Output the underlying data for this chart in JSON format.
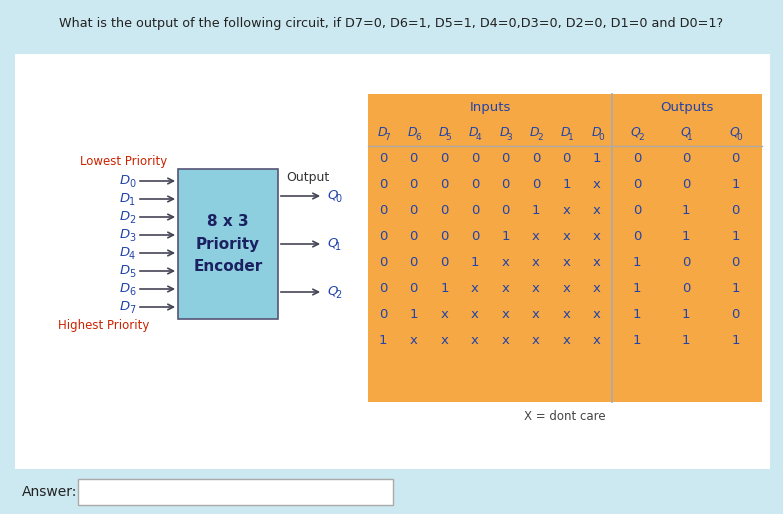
{
  "title": "What is the output of the following circuit, if D7=0, D6=1, D5=1, D4=0,D3=0, D2=0, D1=0 and D0=1?",
  "bg_outer": "#cce8f0",
  "bg_inner": "#ffffff",
  "table_bg": "#f5a843",
  "table_header_text": "#2244aa",
  "table_data_text": "#2244aa",
  "box_fill": "#8ecfdf",
  "box_edge": "#555577",
  "box_text": "#1a2060",
  "arrow_color": "#444455",
  "label_color": "#2244aa",
  "priority_color": "#cc2200",
  "inputs_header": "Inputs",
  "outputs_header": "Outputs",
  "table_rows": [
    [
      "0",
      "0",
      "0",
      "0",
      "0",
      "0",
      "0",
      "1",
      "0",
      "0",
      "0"
    ],
    [
      "0",
      "0",
      "0",
      "0",
      "0",
      "0",
      "1",
      "x",
      "0",
      "0",
      "1"
    ],
    [
      "0",
      "0",
      "0",
      "0",
      "0",
      "1",
      "x",
      "x",
      "0",
      "1",
      "0"
    ],
    [
      "0",
      "0",
      "0",
      "0",
      "1",
      "x",
      "x",
      "x",
      "0",
      "1",
      "1"
    ],
    [
      "0",
      "0",
      "0",
      "1",
      "x",
      "x",
      "x",
      "x",
      "1",
      "0",
      "0"
    ],
    [
      "0",
      "0",
      "1",
      "x",
      "x",
      "x",
      "x",
      "x",
      "1",
      "0",
      "1"
    ],
    [
      "0",
      "1",
      "x",
      "x",
      "x",
      "x",
      "x",
      "x",
      "1",
      "1",
      "0"
    ],
    [
      "1",
      "x",
      "x",
      "x",
      "x",
      "x",
      "x",
      "x",
      "1",
      "1",
      "1"
    ]
  ],
  "dont_care_note": "X = dont care",
  "lowest_priority": "Lowest Priority",
  "highest_priority": "Highest Priority",
  "output_label": "Output",
  "box_label1": "8 x 3",
  "box_label2": "Priority",
  "box_label3": "Encoder",
  "input_labels": [
    "D0",
    "D1",
    "D2",
    "D3",
    "D4",
    "D5",
    "D6",
    "D7"
  ],
  "input_subs": [
    "0",
    "1",
    "2",
    "3",
    "4",
    "5",
    "6",
    "7"
  ],
  "output_labels": [
    "Q0",
    "Q1",
    "Q2"
  ],
  "output_subs": [
    "0",
    "1",
    "2"
  ],
  "col_bases": [
    "D",
    "D",
    "D",
    "D",
    "D",
    "D",
    "D",
    "D",
    "Q",
    "Q",
    "Q"
  ],
  "col_subs": [
    "7",
    "6",
    "5",
    "4",
    "3",
    "2",
    "1",
    "0",
    "2",
    "1",
    "0"
  ],
  "answer_label": "Answer:",
  "answer_box_color": "#ffffff"
}
